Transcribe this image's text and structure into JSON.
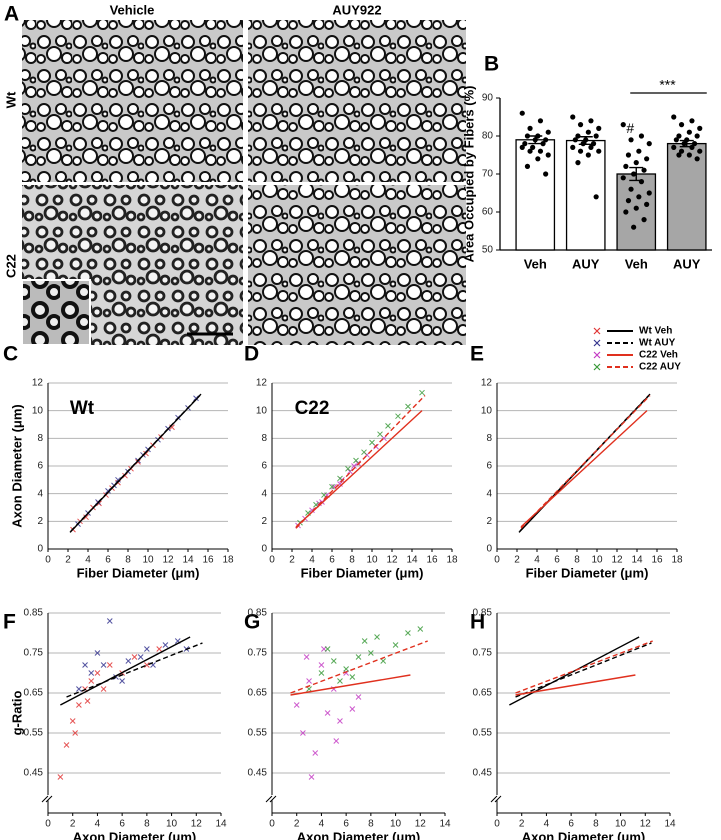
{
  "micrograph": {
    "panel_label": "A",
    "columns": [
      "Vehicle",
      "AUY922"
    ],
    "rows": [
      "Wt",
      "C22"
    ]
  },
  "legend": [
    {
      "name": "Wt Veh",
      "marker_color": "#e03535",
      "line_color": "#000000",
      "dashed": false
    },
    {
      "name": "Wt AUY",
      "marker_color": "#35358f",
      "line_color": "#000000",
      "dashed": true
    },
    {
      "name": "C22 Veh",
      "marker_color": "#c43cc4",
      "line_color": "#e0301e",
      "dashed": false
    },
    {
      "name": "C22 AUY",
      "marker_color": "#3a9a3a",
      "line_color": "#e0301e",
      "dashed": true
    }
  ],
  "chart_data": [
    {
      "type": "bar",
      "panel_label": "B",
      "y_label": "Area Occupied by Fibers (%)",
      "categories": [
        "Veh",
        "AUY",
        "Veh",
        "AUY"
      ],
      "values": [
        79,
        78.8,
        70,
        78
      ],
      "errors": [
        1,
        1,
        1.7,
        0.8
      ],
      "colors": [
        "#ffffff",
        "#ffffff",
        "#a6a6a6",
        "#a6a6a6"
      ],
      "points": [
        [
          86,
          84,
          82,
          81,
          80,
          80,
          79,
          79,
          78,
          78,
          77,
          77,
          76,
          76,
          75,
          74,
          72,
          70
        ],
        [
          85,
          84,
          83,
          82,
          81,
          80,
          80,
          79,
          79,
          78,
          78,
          77,
          77,
          76,
          76,
          75,
          73,
          64
        ],
        [
          83,
          80,
          79,
          78,
          76,
          75,
          74,
          73,
          72,
          71,
          70,
          69,
          68,
          66,
          65,
          64,
          63,
          62,
          61,
          60,
          58,
          56
        ],
        [
          85,
          84,
          83,
          82,
          81,
          80,
          80,
          79,
          79,
          78,
          78,
          77,
          77,
          76,
          76,
          75,
          75,
          74
        ]
      ],
      "annotations": [
        "#",
        "***"
      ],
      "ylim": [
        50,
        90
      ],
      "yticks": [
        50,
        60,
        70,
        80,
        90
      ]
    },
    {
      "type": "scatter",
      "panel_label": "C",
      "title": "Wt",
      "x_label": "Fiber Diameter (μm)",
      "y_label": "Axon Diameter (μm)",
      "xlim": [
        0,
        18
      ],
      "xticks": [
        0,
        2,
        4,
        6,
        8,
        10,
        12,
        14,
        16,
        18
      ],
      "ylim": [
        0,
        12
      ],
      "yticks": [
        0,
        2,
        4,
        6,
        8,
        10,
        12
      ],
      "grid": true,
      "series": [
        {
          "name": "Wt Veh",
          "x": [
            2.5,
            3.2,
            3.8,
            4.5,
            5.1,
            5.8,
            6.4,
            7.0,
            7.7,
            8.3,
            9.0,
            9.8,
            10.5,
            11.3,
            12.4
          ],
          "y": [
            1.4,
            2.0,
            2.3,
            3.0,
            3.3,
            3.9,
            4.4,
            4.8,
            5.3,
            5.8,
            6.3,
            6.9,
            7.5,
            8.1,
            8.8
          ],
          "fit": {
            "x": [
              2.2,
              15.2
            ],
            "y": [
              1.2,
              11.1
            ]
          }
        },
        {
          "name": "Wt AUY",
          "x": [
            3.0,
            4.0,
            5.0,
            6.0,
            7.0,
            8.0,
            9.0,
            10.0,
            11.0,
            12.0,
            13.0,
            14.0,
            14.8,
            6.6,
            9.5
          ],
          "y": [
            1.8,
            2.6,
            3.4,
            4.2,
            5.0,
            5.6,
            6.4,
            7.2,
            7.9,
            8.7,
            9.5,
            10.2,
            10.9,
            4.6,
            6.8
          ],
          "fit": {
            "x": [
              2.3,
              15.3
            ],
            "y": [
              1.3,
              11.2
            ]
          }
        }
      ]
    },
    {
      "type": "scatter",
      "panel_label": "D",
      "title": "C22",
      "x_label": "Fiber Diameter (μm)",
      "xlim": [
        0,
        18
      ],
      "xticks": [
        0,
        2,
        4,
        6,
        8,
        10,
        12,
        14,
        16,
        18
      ],
      "ylim": [
        0,
        12
      ],
      "yticks": [
        0,
        2,
        4,
        6,
        8,
        10,
        12
      ],
      "grid": true,
      "series": [
        {
          "name": "C22 Veh",
          "x": [
            2.6,
            3.3,
            4.0,
            4.7,
            5.5,
            6.2,
            7.0,
            7.8,
            8.6,
            9.5,
            10.4,
            11.2,
            5.0,
            6.8,
            8.2
          ],
          "y": [
            1.7,
            2.2,
            2.8,
            3.3,
            3.9,
            4.5,
            5.0,
            5.6,
            6.2,
            6.8,
            7.4,
            8.0,
            3.4,
            4.7,
            6.0
          ],
          "fit": {
            "x": [
              2.4,
              15.0
            ],
            "y": [
              1.6,
              10.0
            ]
          }
        },
        {
          "name": "C22 AUY",
          "x": [
            2.8,
            3.6,
            4.4,
            5.2,
            6.0,
            6.8,
            7.6,
            8.4,
            9.2,
            10.0,
            10.8,
            11.6,
            12.6,
            13.6,
            15.0
          ],
          "y": [
            1.9,
            2.6,
            3.2,
            3.9,
            4.5,
            5.1,
            5.8,
            6.4,
            7.0,
            7.7,
            8.3,
            8.9,
            9.6,
            10.3,
            11.3
          ],
          "fit": {
            "x": [
              2.4,
              15.3
            ],
            "y": [
              1.5,
              11.1
            ]
          }
        }
      ]
    },
    {
      "type": "scatter",
      "panel_label": "E",
      "x_label": "Fiber Diameter (μm)",
      "xlim": [
        0,
        18
      ],
      "xticks": [
        0,
        2,
        4,
        6,
        8,
        10,
        12,
        14,
        16,
        18
      ],
      "ylim": [
        0,
        12
      ],
      "yticks": [
        0,
        2,
        4,
        6,
        8,
        10,
        12
      ],
      "grid": true,
      "series": [
        {
          "name": "Wt Veh",
          "fit": {
            "x": [
              2.2,
              15.2
            ],
            "y": [
              1.2,
              11.1
            ]
          }
        },
        {
          "name": "Wt AUY",
          "fit": {
            "x": [
              2.3,
              15.3
            ],
            "y": [
              1.3,
              11.2
            ]
          }
        },
        {
          "name": "C22 Veh",
          "fit": {
            "x": [
              2.4,
              15.0
            ],
            "y": [
              1.6,
              10.0
            ]
          }
        },
        {
          "name": "C22 AUY",
          "fit": {
            "x": [
              2.4,
              15.3
            ],
            "y": [
              1.5,
              11.1
            ]
          }
        }
      ]
    },
    {
      "type": "scatter",
      "panel_label": "F",
      "x_label": "Axon Diameter (μm)",
      "y_label": "g-Ratio",
      "xlim": [
        0,
        14
      ],
      "xticks": [
        0,
        2,
        4,
        6,
        8,
        10,
        12,
        14
      ],
      "ylim": [
        0.35,
        0.85
      ],
      "yticks": [
        0.45,
        0.55,
        0.65,
        0.75,
        0.85
      ],
      "grid": true,
      "series": [
        {
          "name": "Wt Veh",
          "x": [
            1.0,
            1.5,
            2.0,
            2.5,
            3.0,
            3.5,
            4.0,
            4.5,
            5.0,
            6.0,
            7.0,
            8.0,
            9.0,
            2.2,
            3.2
          ],
          "y": [
            0.44,
            0.52,
            0.58,
            0.62,
            0.66,
            0.68,
            0.7,
            0.66,
            0.72,
            0.7,
            0.74,
            0.72,
            0.76,
            0.55,
            0.63
          ],
          "fit": {
            "x": [
              1.0,
              11.5
            ],
            "y": [
              0.62,
              0.79
            ]
          }
        },
        {
          "name": "Wt AUY",
          "x": [
            2.5,
            3.5,
            4.5,
            5.5,
            6.5,
            7.5,
            8.5,
            9.5,
            10.5,
            11.2,
            4.0,
            6.0,
            8.0,
            3.0,
            5.0
          ],
          "y": [
            0.66,
            0.7,
            0.72,
            0.69,
            0.73,
            0.74,
            0.72,
            0.77,
            0.78,
            0.76,
            0.75,
            0.68,
            0.76,
            0.72,
            0.83
          ],
          "fit": {
            "x": [
              1.5,
              12.5
            ],
            "y": [
              0.64,
              0.775
            ]
          }
        }
      ]
    },
    {
      "type": "scatter",
      "panel_label": "G",
      "x_label": "Axon Diameter (μm)",
      "xlim": [
        0,
        14
      ],
      "xticks": [
        0,
        2,
        4,
        6,
        8,
        10,
        12,
        14
      ],
      "ylim": [
        0.35,
        0.85
      ],
      "yticks": [
        0.45,
        0.55,
        0.65,
        0.75,
        0.85
      ],
      "grid": true,
      "series": [
        {
          "name": "C22 Veh",
          "x": [
            2.0,
            2.5,
            3.0,
            3.5,
            4.0,
            4.5,
            5.0,
            5.5,
            6.0,
            7.0,
            3.2,
            4.2,
            2.8,
            5.2,
            6.5
          ],
          "y": [
            0.62,
            0.55,
            0.68,
            0.5,
            0.72,
            0.6,
            0.66,
            0.58,
            0.7,
            0.64,
            0.44,
            0.76,
            0.74,
            0.53,
            0.61
          ],
          "fit": {
            "x": [
              1.5,
              11.2
            ],
            "y": [
              0.645,
              0.695
            ]
          }
        },
        {
          "name": "C22 AUY",
          "x": [
            3.0,
            4.0,
            5.0,
            6.0,
            7.0,
            8.0,
            9.0,
            10.0,
            11.0,
            12.0,
            5.5,
            7.5,
            4.5,
            6.5,
            8.5
          ],
          "y": [
            0.66,
            0.7,
            0.73,
            0.71,
            0.74,
            0.75,
            0.73,
            0.77,
            0.8,
            0.81,
            0.68,
            0.78,
            0.76,
            0.69,
            0.79
          ],
          "fit": {
            "x": [
              1.5,
              12.6
            ],
            "y": [
              0.65,
              0.78
            ]
          }
        }
      ]
    },
    {
      "type": "scatter",
      "panel_label": "H",
      "x_label": "Axon Diameter (μm)",
      "xlim": [
        0,
        14
      ],
      "xticks": [
        0,
        2,
        4,
        6,
        8,
        10,
        12,
        14
      ],
      "ylim": [
        0.35,
        0.85
      ],
      "yticks": [
        0.45,
        0.55,
        0.65,
        0.75,
        0.85
      ],
      "grid": true,
      "series": [
        {
          "name": "Wt Veh",
          "fit": {
            "x": [
              1.0,
              11.5
            ],
            "y": [
              0.62,
              0.79
            ]
          }
        },
        {
          "name": "Wt AUY",
          "fit": {
            "x": [
              1.5,
              12.5
            ],
            "y": [
              0.64,
              0.775
            ]
          }
        },
        {
          "name": "C22 Veh",
          "fit": {
            "x": [
              1.5,
              11.2
            ],
            "y": [
              0.645,
              0.695
            ]
          }
        },
        {
          "name": "C22 AUY",
          "fit": {
            "x": [
              1.5,
              12.6
            ],
            "y": [
              0.65,
              0.78
            ]
          }
        }
      ]
    }
  ]
}
